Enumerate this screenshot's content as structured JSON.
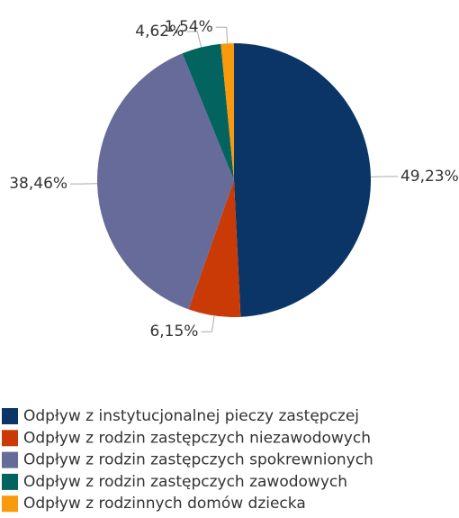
{
  "chart_data": {
    "type": "pie",
    "categories": [
      "Odpływ z instytucjonalnej pieczy zastępczej",
      "Odpływ z rodzin zastępczych niezawodowych",
      "Odpływ z rodzin zastępczych spokrewnionych",
      "Odpływ z rodzin zastępczych zawodowych",
      "Odpływ z rodzinnych domów dziecka"
    ],
    "values": [
      49.23,
      6.15,
      38.46,
      4.62,
      1.54
    ],
    "value_labels": [
      "49,23%",
      "6,15%",
      "38,46%",
      "4,62%",
      "1,54%"
    ],
    "colors": [
      "#0b3566",
      "#c93a06",
      "#666b99",
      "#03635f",
      "#f99a0d"
    ],
    "legend": "bottom-left"
  }
}
